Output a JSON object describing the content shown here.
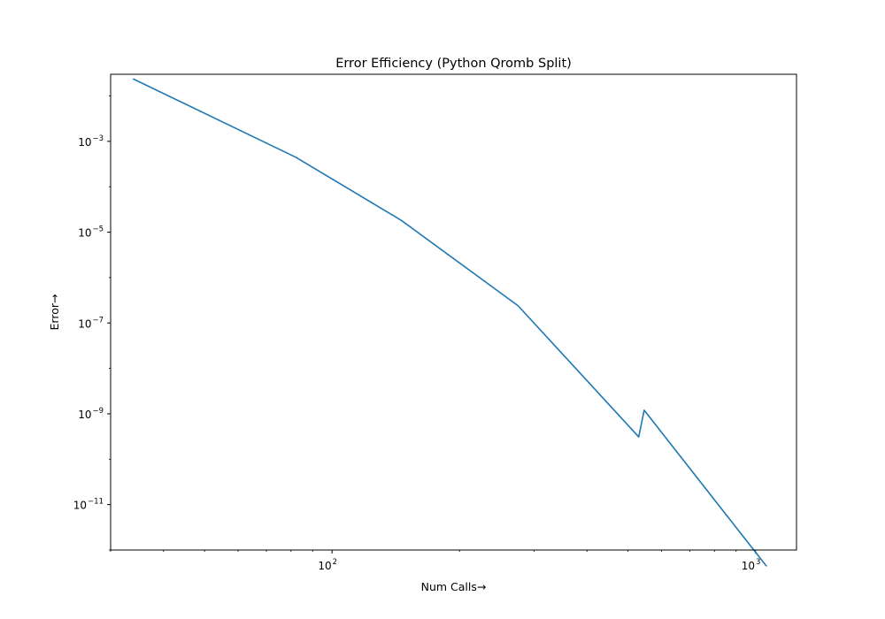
{
  "chart_data": {
    "type": "line",
    "title": "Error Efficiency (Python Qromb Split)",
    "xlabel": "Num Calls→",
    "ylabel": "Error→",
    "xscale": "log",
    "yscale": "log",
    "xlim": [
      30,
      1250
    ],
    "ylim": [
      1e-12,
      0.03
    ],
    "x_ticks": [
      {
        "value": 100,
        "base": "10",
        "exp": "2"
      },
      {
        "value": 1000,
        "base": "10",
        "exp": "3"
      }
    ],
    "y_ticks": [
      {
        "value": 0.001,
        "base": "10",
        "exp": "−3"
      },
      {
        "value": 1e-05,
        "base": "10",
        "exp": "−5"
      },
      {
        "value": 1e-07,
        "base": "10",
        "exp": "−7"
      },
      {
        "value": 1e-09,
        "base": "10",
        "exp": "−9"
      },
      {
        "value": 1e-11,
        "base": "10",
        "exp": "−11"
      }
    ],
    "grid": false,
    "series": [
      {
        "name": "error",
        "color": "#1f77b4",
        "x": [
          34,
          82,
          146,
          275,
          530,
          546,
          1060
        ],
        "y": [
          0.0235,
          0.00045,
          1.8e-05,
          2.4e-07,
          3.1e-10,
          1.2e-09,
          4.5e-13
        ]
      }
    ]
  }
}
